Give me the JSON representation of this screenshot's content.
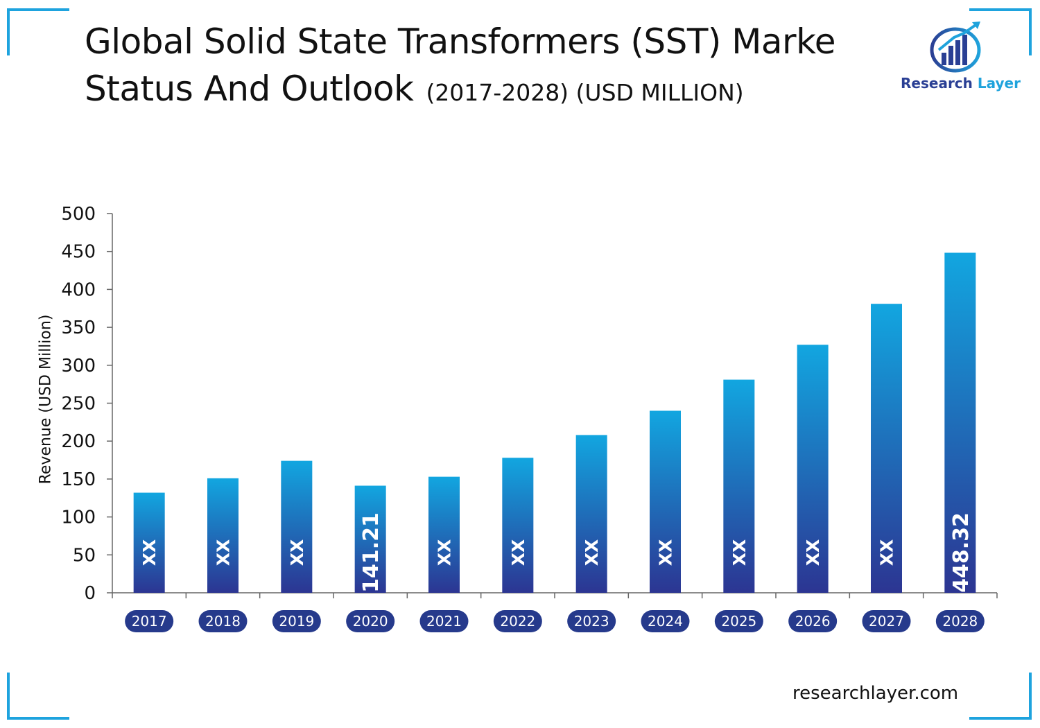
{
  "title": {
    "line1": "Global Solid State Transformers (SST) Marke",
    "line2": "Status And Outlook",
    "subtitle": "(2017-2028) (USD MILLION)"
  },
  "logo": {
    "brand_part1": "Research",
    "brand_part2": "Layer"
  },
  "footer": {
    "website": "researchlayer.com"
  },
  "colors": {
    "bar_top": "#12a6e0",
    "bar_bottom": "#2c3592",
    "year_pill": "#263a8c",
    "frame": "#1ea3de"
  },
  "chart_data": {
    "type": "bar",
    "title": "Global Solid State Transformers (SST) Marke Status And Outlook (2017-2028) (USD MILLION)",
    "xlabel": "",
    "ylabel": "Revenue (USD Million)",
    "ylim": [
      0,
      500
    ],
    "yticks": [
      0,
      50,
      100,
      150,
      200,
      250,
      300,
      350,
      400,
      450,
      500
    ],
    "grid": false,
    "categories": [
      "2017",
      "2018",
      "2019",
      "2020",
      "2021",
      "2022",
      "2023",
      "2024",
      "2025",
      "2026",
      "2027",
      "2028"
    ],
    "values": [
      132,
      151,
      174,
      141.21,
      153,
      178,
      208,
      240,
      281,
      327,
      381,
      448.32
    ],
    "data_labels": [
      "XX",
      "XX",
      "XX",
      "141.21",
      "XX",
      "XX",
      "XX",
      "XX",
      "XX",
      "XX",
      "XX",
      "448.32"
    ]
  }
}
